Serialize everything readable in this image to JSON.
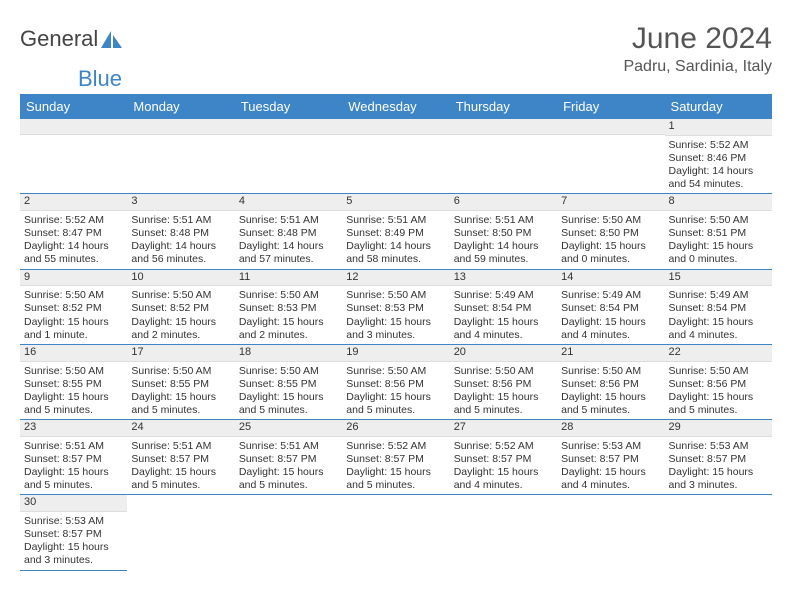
{
  "logo": {
    "text1": "General",
    "text2": "Blue"
  },
  "title": "June 2024",
  "subtitle": "Padru, Sardinia, Italy",
  "colors": {
    "header_bg": "#3d85c6",
    "header_fg": "#ffffff",
    "daybar_bg": "#eeeeee",
    "border": "#3d85c6",
    "logo_blue": "#3d85c6"
  },
  "days_of_week": [
    "Sunday",
    "Monday",
    "Tuesday",
    "Wednesday",
    "Thursday",
    "Friday",
    "Saturday"
  ],
  "weeks": [
    [
      {
        "blank": true
      },
      {
        "blank": true
      },
      {
        "blank": true
      },
      {
        "blank": true
      },
      {
        "blank": true
      },
      {
        "blank": true
      },
      {
        "num": "1",
        "sunrise": "Sunrise: 5:52 AM",
        "sunset": "Sunset: 8:46 PM",
        "daylight": "Daylight: 14 hours and 54 minutes."
      }
    ],
    [
      {
        "num": "2",
        "sunrise": "Sunrise: 5:52 AM",
        "sunset": "Sunset: 8:47 PM",
        "daylight": "Daylight: 14 hours and 55 minutes."
      },
      {
        "num": "3",
        "sunrise": "Sunrise: 5:51 AM",
        "sunset": "Sunset: 8:48 PM",
        "daylight": "Daylight: 14 hours and 56 minutes."
      },
      {
        "num": "4",
        "sunrise": "Sunrise: 5:51 AM",
        "sunset": "Sunset: 8:48 PM",
        "daylight": "Daylight: 14 hours and 57 minutes."
      },
      {
        "num": "5",
        "sunrise": "Sunrise: 5:51 AM",
        "sunset": "Sunset: 8:49 PM",
        "daylight": "Daylight: 14 hours and 58 minutes."
      },
      {
        "num": "6",
        "sunrise": "Sunrise: 5:51 AM",
        "sunset": "Sunset: 8:50 PM",
        "daylight": "Daylight: 14 hours and 59 minutes."
      },
      {
        "num": "7",
        "sunrise": "Sunrise: 5:50 AM",
        "sunset": "Sunset: 8:50 PM",
        "daylight": "Daylight: 15 hours and 0 minutes."
      },
      {
        "num": "8",
        "sunrise": "Sunrise: 5:50 AM",
        "sunset": "Sunset: 8:51 PM",
        "daylight": "Daylight: 15 hours and 0 minutes."
      }
    ],
    [
      {
        "num": "9",
        "sunrise": "Sunrise: 5:50 AM",
        "sunset": "Sunset: 8:52 PM",
        "daylight": "Daylight: 15 hours and 1 minute."
      },
      {
        "num": "10",
        "sunrise": "Sunrise: 5:50 AM",
        "sunset": "Sunset: 8:52 PM",
        "daylight": "Daylight: 15 hours and 2 minutes."
      },
      {
        "num": "11",
        "sunrise": "Sunrise: 5:50 AM",
        "sunset": "Sunset: 8:53 PM",
        "daylight": "Daylight: 15 hours and 2 minutes."
      },
      {
        "num": "12",
        "sunrise": "Sunrise: 5:50 AM",
        "sunset": "Sunset: 8:53 PM",
        "daylight": "Daylight: 15 hours and 3 minutes."
      },
      {
        "num": "13",
        "sunrise": "Sunrise: 5:49 AM",
        "sunset": "Sunset: 8:54 PM",
        "daylight": "Daylight: 15 hours and 4 minutes."
      },
      {
        "num": "14",
        "sunrise": "Sunrise: 5:49 AM",
        "sunset": "Sunset: 8:54 PM",
        "daylight": "Daylight: 15 hours and 4 minutes."
      },
      {
        "num": "15",
        "sunrise": "Sunrise: 5:49 AM",
        "sunset": "Sunset: 8:54 PM",
        "daylight": "Daylight: 15 hours and 4 minutes."
      }
    ],
    [
      {
        "num": "16",
        "sunrise": "Sunrise: 5:50 AM",
        "sunset": "Sunset: 8:55 PM",
        "daylight": "Daylight: 15 hours and 5 minutes."
      },
      {
        "num": "17",
        "sunrise": "Sunrise: 5:50 AM",
        "sunset": "Sunset: 8:55 PM",
        "daylight": "Daylight: 15 hours and 5 minutes."
      },
      {
        "num": "18",
        "sunrise": "Sunrise: 5:50 AM",
        "sunset": "Sunset: 8:55 PM",
        "daylight": "Daylight: 15 hours and 5 minutes."
      },
      {
        "num": "19",
        "sunrise": "Sunrise: 5:50 AM",
        "sunset": "Sunset: 8:56 PM",
        "daylight": "Daylight: 15 hours and 5 minutes."
      },
      {
        "num": "20",
        "sunrise": "Sunrise: 5:50 AM",
        "sunset": "Sunset: 8:56 PM",
        "daylight": "Daylight: 15 hours and 5 minutes."
      },
      {
        "num": "21",
        "sunrise": "Sunrise: 5:50 AM",
        "sunset": "Sunset: 8:56 PM",
        "daylight": "Daylight: 15 hours and 5 minutes."
      },
      {
        "num": "22",
        "sunrise": "Sunrise: 5:50 AM",
        "sunset": "Sunset: 8:56 PM",
        "daylight": "Daylight: 15 hours and 5 minutes."
      }
    ],
    [
      {
        "num": "23",
        "sunrise": "Sunrise: 5:51 AM",
        "sunset": "Sunset: 8:57 PM",
        "daylight": "Daylight: 15 hours and 5 minutes."
      },
      {
        "num": "24",
        "sunrise": "Sunrise: 5:51 AM",
        "sunset": "Sunset: 8:57 PM",
        "daylight": "Daylight: 15 hours and 5 minutes."
      },
      {
        "num": "25",
        "sunrise": "Sunrise: 5:51 AM",
        "sunset": "Sunset: 8:57 PM",
        "daylight": "Daylight: 15 hours and 5 minutes."
      },
      {
        "num": "26",
        "sunrise": "Sunrise: 5:52 AM",
        "sunset": "Sunset: 8:57 PM",
        "daylight": "Daylight: 15 hours and 5 minutes."
      },
      {
        "num": "27",
        "sunrise": "Sunrise: 5:52 AM",
        "sunset": "Sunset: 8:57 PM",
        "daylight": "Daylight: 15 hours and 4 minutes."
      },
      {
        "num": "28",
        "sunrise": "Sunrise: 5:53 AM",
        "sunset": "Sunset: 8:57 PM",
        "daylight": "Daylight: 15 hours and 4 minutes."
      },
      {
        "num": "29",
        "sunrise": "Sunrise: 5:53 AM",
        "sunset": "Sunset: 8:57 PM",
        "daylight": "Daylight: 15 hours and 3 minutes."
      }
    ],
    [
      {
        "num": "30",
        "sunrise": "Sunrise: 5:53 AM",
        "sunset": "Sunset: 8:57 PM",
        "daylight": "Daylight: 15 hours and 3 minutes."
      },
      {
        "blank": true
      },
      {
        "blank": true
      },
      {
        "blank": true
      },
      {
        "blank": true
      },
      {
        "blank": true
      },
      {
        "blank": true
      }
    ]
  ]
}
